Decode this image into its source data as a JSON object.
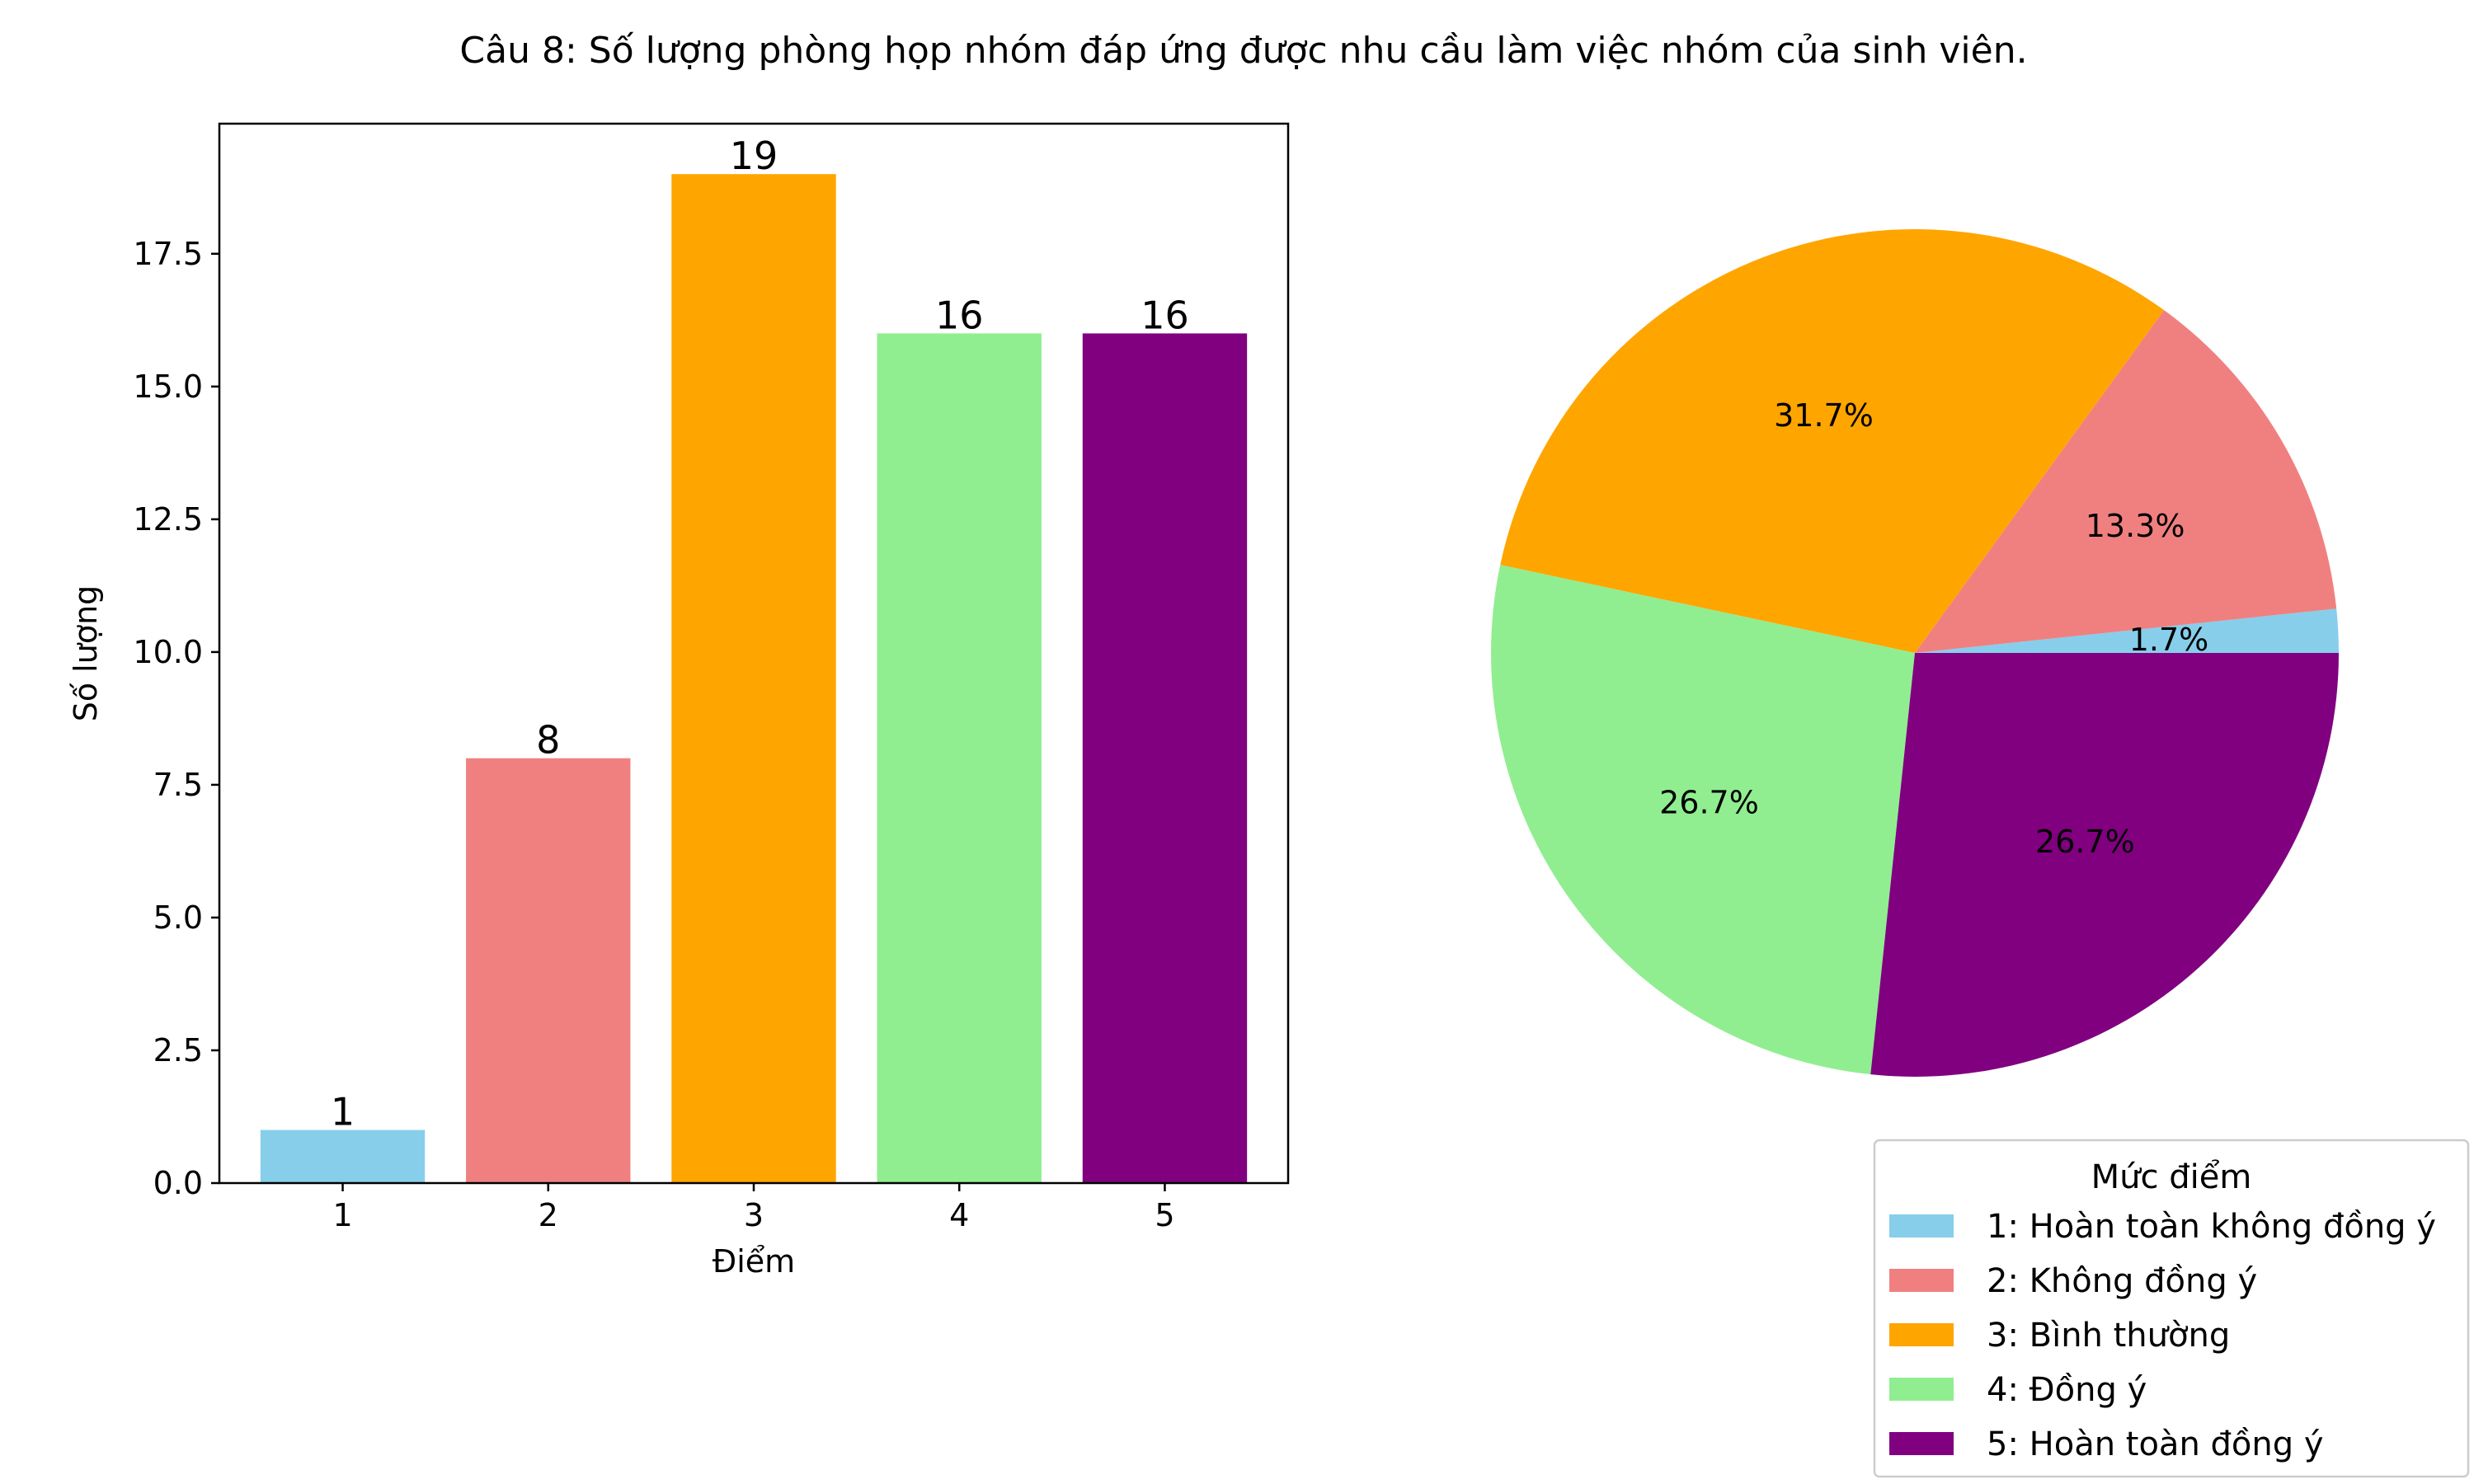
{
  "title": "Câu 8: Số lượng phòng họp nhóm đáp ứng được nhu cầu làm việc nhóm của sinh viên.",
  "chart_data": [
    {
      "type": "bar",
      "categories": [
        "1",
        "2",
        "3",
        "4",
        "5"
      ],
      "values": [
        1,
        8,
        19,
        16,
        16
      ],
      "data_labels": [
        "1",
        "8",
        "19",
        "16",
        "16"
      ],
      "colors": [
        "#87ceeb",
        "#f08080",
        "#ffa500",
        "#90ee90",
        "#800080"
      ],
      "xlabel": "Điểm",
      "ylabel": "Số lượng",
      "ylim": [
        0,
        19.95
      ],
      "yticks": [
        0,
        2.5,
        5,
        7.5,
        10,
        12.5,
        15,
        17.5
      ],
      "ytick_labels": [
        "0.0",
        "2.5",
        "5.0",
        "7.5",
        "10.0",
        "12.5",
        "15.0",
        "17.5"
      ],
      "grid": false
    },
    {
      "type": "pie",
      "values": [
        1,
        8,
        19,
        16,
        16
      ],
      "percent_labels": [
        "1.7%",
        "13.3%",
        "31.7%",
        "26.7%",
        "26.7%"
      ],
      "colors": [
        "#87ceeb",
        "#f08080",
        "#ffa500",
        "#90ee90",
        "#800080"
      ],
      "start_angle": 0,
      "direction": "counterclockwise",
      "legend": {
        "title": "Mức điểm",
        "placement": "lower-right",
        "entries": [
          "1: Hoàn toàn không đồng ý",
          "2: Không đồng ý",
          "3: Bình thường",
          "4: Đồng ý",
          "5: Hoàn toàn đồng ý"
        ]
      }
    }
  ]
}
